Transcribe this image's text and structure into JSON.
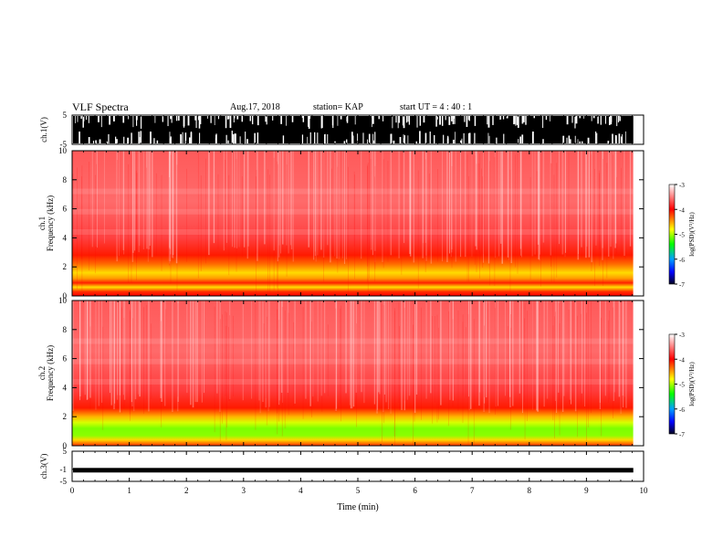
{
  "header": {
    "title": "VLF Spectra",
    "date": "Aug.17, 2018",
    "station": "station= KAP",
    "start_ut": "start  UT  =   4 : 40 : 1"
  },
  "chart_data": [
    {
      "type": "line",
      "panel": "ch1-waveform",
      "ylabel": "ch.1(V)",
      "yticklabels": [
        "5",
        "-5"
      ],
      "ylim": [
        -5,
        5
      ],
      "xlim": [
        0,
        10
      ],
      "data_extent_min": 9.82,
      "description": "dense waveform, saturating between -5 and 5 V"
    },
    {
      "type": "heatmap",
      "panel": "ch1-spectrogram",
      "ylabel_line1": "ch.1",
      "ylabel_line2": "Frequency (kHz)",
      "yticks": [
        0,
        2,
        4,
        6,
        8,
        10
      ],
      "ylim": [
        0,
        10
      ],
      "xlim": [
        0,
        10
      ],
      "data_extent_min": 9.82,
      "colorbar": {
        "label": "log(PSD)(V²/Hz)",
        "ticks": [
          "-3",
          "-4",
          "-5",
          "-6",
          "-7"
        ],
        "range": [
          -7,
          -3
        ]
      }
    },
    {
      "type": "heatmap",
      "panel": "ch2-spectrogram",
      "ylabel_line1": "ch.2",
      "ylabel_line2": "Frequency (kHz)",
      "yticks": [
        0,
        2,
        4,
        6,
        8,
        10
      ],
      "ylim": [
        0,
        10
      ],
      "xlim": [
        0,
        10
      ],
      "data_extent_min": 9.82,
      "colorbar": {
        "label": "log(PSD)(V²/Hz)",
        "ticks": [
          "-3",
          "-4",
          "-5",
          "-6",
          "-7"
        ],
        "range": [
          -7,
          -3
        ]
      }
    },
    {
      "type": "line",
      "panel": "ch3-waveform",
      "ylabel": "ch.3(V)",
      "yticklabels": [
        "5",
        "-1",
        "-5"
      ],
      "ylim": [
        -5,
        5
      ],
      "xlim": [
        0,
        10
      ],
      "value_level": -1.3,
      "data_extent_min": 9.82
    }
  ],
  "x_axis": {
    "label": "Time (min)",
    "ticks": [
      "0",
      "1",
      "2",
      "3",
      "4",
      "5",
      "6",
      "7",
      "8",
      "9",
      "10"
    ]
  },
  "colors": {
    "background": "#ffffff",
    "spectrum_high": "#ff0000",
    "spectrum_mid": "#ffff00",
    "spectrum_low": "#00ff00",
    "waveform": "#000000"
  }
}
